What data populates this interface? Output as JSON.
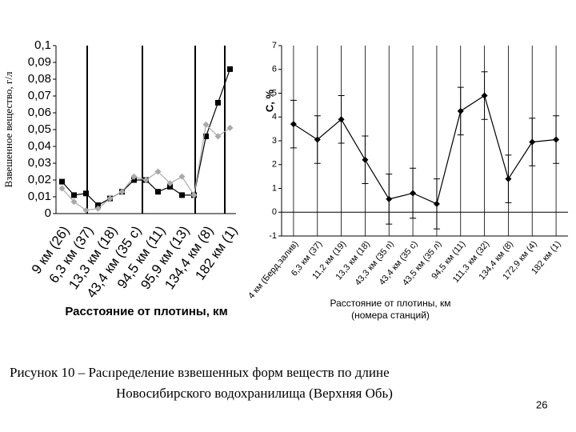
{
  "chart_data": [
    {
      "type": "line",
      "ylabel": "Взвешенное вещество, г/л",
      "xlabel": "Расстояние от плотины, км",
      "categories": [
        "9 км (26)",
        null,
        "6,3 км (37)",
        null,
        "13,3 км (18)",
        null,
        "43,4 км (35 с)",
        null,
        "94,5 км (11)",
        null,
        "95,9 км (13)",
        null,
        "134,4 км (8)",
        null,
        "182 км (1)"
      ],
      "series": [
        {
          "color": "#000000",
          "marker": "square",
          "values": [
            0.019,
            0.011,
            0.012,
            0.005,
            0.009,
            0.013,
            0.02,
            0.02,
            0.013,
            0.016,
            0.011,
            0.011,
            0.046,
            0.066,
            0.086
          ]
        },
        {
          "color": "#aaaaaa",
          "marker": "diamond",
          "values": [
            0.015,
            0.007,
            0.002,
            0.003,
            0.009,
            0.013,
            0.022,
            0.02,
            0.025,
            0.018,
            0.022,
            0.011,
            0.053,
            0.046,
            0.051
          ]
        }
      ],
      "ylim": [
        0,
        0.1
      ],
      "yticks": [
        0,
        {
          "value": 0.01,
          "label": "0,01"
        },
        {
          "value": 0.02,
          "label": "0,02"
        },
        {
          "value": 0.03,
          "label": "0,03"
        },
        {
          "value": 0.04,
          "label": "0,04"
        },
        {
          "value": 0.05,
          "label": "0,05"
        },
        {
          "value": 0.06,
          "label": "0,06"
        },
        {
          "value": 0.07,
          "label": "0,07"
        },
        {
          "value": 0.08,
          "label": "0,08"
        },
        {
          "value": 0.09,
          "label": "0,09"
        },
        {
          "value": 0.1,
          "label": "0,1"
        }
      ]
    },
    {
      "type": "errorline",
      "ylabel": "C, %",
      "xlabel": [
        "Расстояние от плотины, км",
        "(номера станций)"
      ],
      "categories": [
        "4 км (Берд.залив)",
        "6,3 км (37)",
        "11,2 км (19)",
        "13,3 км (18)",
        "43,3 км (35 п)",
        "43,4 км (35 с)",
        "43,5 км (35 л)",
        "94,5 км (11)",
        "111,3 км (32)",
        "134,4 км (8)",
        "172,9 км (4)",
        "182 км (1)"
      ],
      "series": [
        {
          "color": "#000000",
          "marker": "diamond",
          "values": [
            3.7,
            3.05,
            3.9,
            2.2,
            0.55,
            0.8,
            0.35,
            4.25,
            4.9,
            1.4,
            2.95,
            3.05
          ],
          "errors": [
            1,
            1,
            1,
            1,
            1.05,
            1.05,
            1.05,
            1,
            1,
            1,
            1,
            1
          ]
        }
      ],
      "ylim": [
        -1,
        7
      ],
      "yticks": [
        -1,
        0,
        1,
        2,
        3,
        4,
        5,
        6,
        7
      ],
      "grid": true
    }
  ],
  "caption": [
    "Рисунок 10 – Распределение взвешенных форм веществ по длине",
    "Новосибирского водохранилища (Верхняя Обь)"
  ],
  "page_number": "26"
}
